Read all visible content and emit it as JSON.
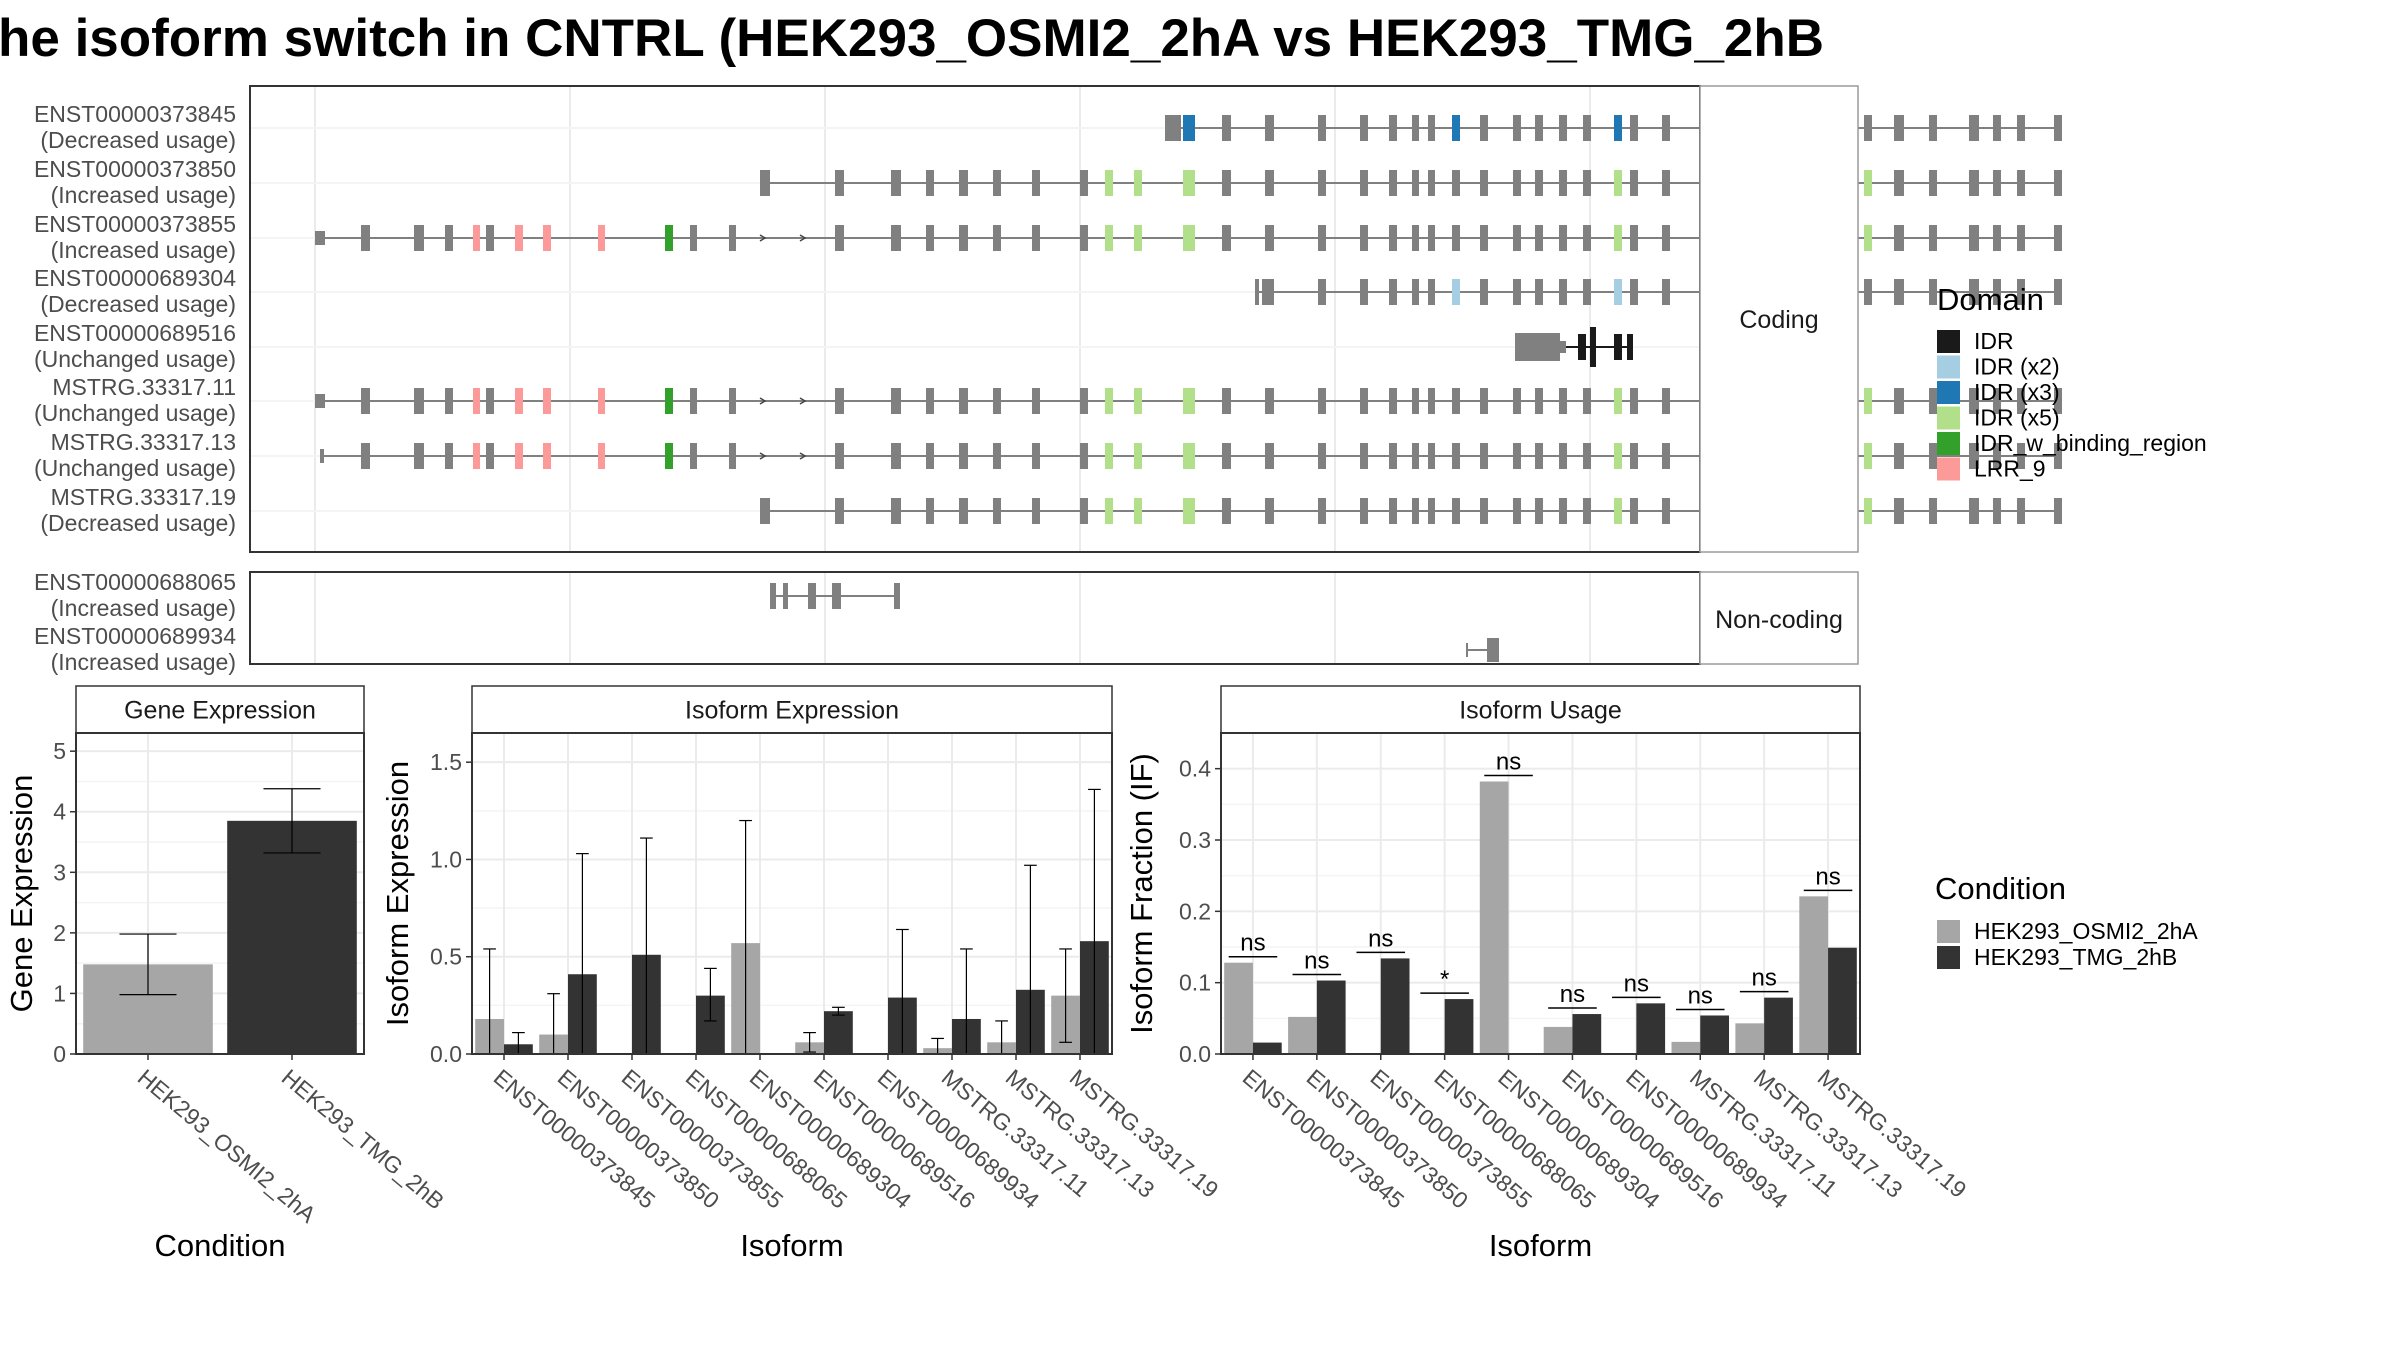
{
  "title": "he isoform switch in CNTRL (HEK293_OSMI2_2hA vs HEK293_TMG_2hB",
  "structure": {
    "coding_strip": "Coding",
    "noncoding_strip": "Non-coding",
    "coding_rows": [
      {
        "name": "ENST00000373845",
        "usage": "(Decreased usage)"
      },
      {
        "name": "ENST00000373850",
        "usage": "(Increased usage)"
      },
      {
        "name": "ENST00000373855",
        "usage": "(Increased usage)"
      },
      {
        "name": "ENST00000689304",
        "usage": "(Decreased usage)"
      },
      {
        "name": "ENST00000689516",
        "usage": "(Unchanged usage)"
      },
      {
        "name": "MSTRG.33317.11",
        "usage": "(Unchanged usage)"
      },
      {
        "name": "MSTRG.33317.13",
        "usage": "(Unchanged usage)"
      },
      {
        "name": "MSTRG.33317.19",
        "usage": "(Decreased usage)"
      }
    ],
    "noncoding_rows": [
      {
        "name": "ENST00000688065",
        "usage": "(Increased usage)"
      },
      {
        "name": "ENST00000689934",
        "usage": "(Increased usage)"
      }
    ]
  },
  "domain_legend": {
    "title": "Domain",
    "items": [
      {
        "label": "IDR",
        "color": "#1a1a1a"
      },
      {
        "label": "IDR (x2)",
        "color": "#a6cee3"
      },
      {
        "label": "IDR (x3)",
        "color": "#1f78b4"
      },
      {
        "label": "IDR (x5)",
        "color": "#b2df8a"
      },
      {
        "label": "IDR_w_binding_region",
        "color": "#33a02c"
      },
      {
        "label": "LRR_9",
        "color": "#fb9a99"
      }
    ]
  },
  "condition_legend": {
    "title": "Condition",
    "items": [
      {
        "label": "HEK293_OSMI2_2hA",
        "color": "#a6a6a6"
      },
      {
        "label": "HEK293_TMG_2hB",
        "color": "#333333"
      }
    ]
  },
  "colors": {
    "exon": "#808080",
    "condition_a": "#a6a6a6",
    "condition_b": "#333333",
    "strip_bg": "#ffffff"
  },
  "chart_data": [
    {
      "type": "bar",
      "title": "Gene Expression",
      "xlabel": "Condition",
      "ylabel": "Gene Expression",
      "ylim": [
        0,
        5.3
      ],
      "yticks": [
        "0",
        "1",
        "2",
        "3",
        "4",
        "5"
      ],
      "categories": [
        "HEK293_OSMI2_2hA",
        "HEK293_TMG_2hB"
      ],
      "values": [
        1.48,
        3.85
      ],
      "err_low": [
        0.98,
        3.32
      ],
      "err_high": [
        1.98,
        4.38
      ]
    },
    {
      "type": "bar",
      "title": "Isoform Expression",
      "xlabel": "Isoform",
      "ylabel": "Isoform Expression",
      "ylim": [
        0,
        1.65
      ],
      "yticks": [
        "0.0",
        "0.5",
        "1.0",
        "1.5"
      ],
      "categories": [
        "ENST00000373845",
        "ENST00000373850",
        "ENST00000373855",
        "ENST00000688065",
        "ENST00000689304",
        "ENST00000689516",
        "ENST00000689934",
        "MSTRG.33317.11",
        "MSTRG.33317.13",
        "MSTRG.33317.19"
      ],
      "series": [
        {
          "name": "HEK293_OSMI2_2hA",
          "values": [
            0.18,
            0.1,
            0.0,
            0.0,
            0.57,
            0.06,
            0.0,
            0.03,
            0.06,
            0.3
          ],
          "err_low": [
            0.0,
            0.0,
            0.0,
            0.0,
            0.0,
            0.01,
            0.0,
            0.0,
            0.0,
            0.06
          ],
          "err_high": [
            0.54,
            0.31,
            0.0,
            0.0,
            1.2,
            0.11,
            0.0,
            0.08,
            0.17,
            0.54
          ]
        },
        {
          "name": "HEK293_TMG_2hB",
          "values": [
            0.05,
            0.41,
            0.51,
            0.3,
            0.0,
            0.22,
            0.29,
            0.18,
            0.33,
            0.58
          ],
          "err_low": [
            0.0,
            0.0,
            0.0,
            0.17,
            0.0,
            0.2,
            0.0,
            0.0,
            0.0,
            0.0
          ],
          "err_high": [
            0.11,
            1.03,
            1.11,
            0.44,
            0.0,
            0.24,
            0.64,
            0.54,
            0.97,
            1.36
          ]
        }
      ]
    },
    {
      "type": "bar",
      "title": "Isoform Usage",
      "xlabel": "Isoform",
      "ylabel": "Isoform Fraction (IF)",
      "ylim": [
        0,
        0.45
      ],
      "yticks": [
        "0.0",
        "0.1",
        "0.2",
        "0.3",
        "0.4"
      ],
      "categories": [
        "ENST00000373845",
        "ENST00000373850",
        "ENST00000373855",
        "ENST00000688065",
        "ENST00000689304",
        "ENST00000689516",
        "ENST00000689934",
        "MSTRG.33317.11",
        "MSTRG.33317.13",
        "MSTRG.33317.19"
      ],
      "series": [
        {
          "name": "HEK293_OSMI2_2hA",
          "values": [
            0.128,
            0.052,
            0.0,
            0.0,
            0.382,
            0.038,
            0.0,
            0.017,
            0.043,
            0.221
          ]
        },
        {
          "name": "HEK293_TMG_2hB",
          "values": [
            0.016,
            0.103,
            0.134,
            0.077,
            0.0,
            0.056,
            0.071,
            0.054,
            0.079,
            0.149
          ]
        }
      ],
      "significance": [
        "ns",
        "ns",
        "ns",
        "*",
        "ns",
        "ns",
        "ns",
        "ns",
        "ns",
        "ns"
      ]
    }
  ]
}
